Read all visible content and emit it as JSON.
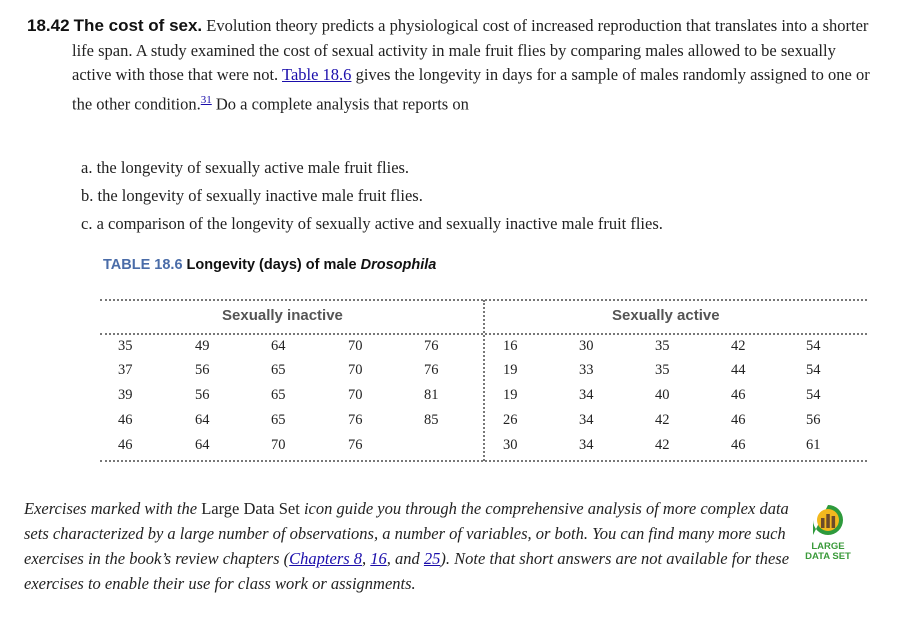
{
  "exercise": {
    "number": "18.42",
    "title": "The cost of sex.",
    "text_before_link": "Evolution theory predicts a physiological cost of increased reproduction that translates into a shorter life span. A study examined the cost of sexual activity in male fruit flies by comparing males allowed to be sexually active with those that were not.",
    "table_link": "Table 18.6",
    "text_after_link": "gives the longevity in days for a sample of males randomly assigned to one or the other condition.",
    "footnote": "31",
    "text_end": "Do a complete analysis that reports on",
    "items": [
      "a. the longevity of sexually active male fruit flies.",
      "b. the longevity of sexually inactive male fruit flies.",
      "c. a comparison of the longevity of sexually active and sexually inactive male fruit flies."
    ]
  },
  "table": {
    "label": "TABLE 18.6",
    "title": "Longevity (days) of male",
    "title_italic": "Drosophila",
    "groups": [
      {
        "header": "Sexually inactive",
        "rows": [
          [
            "35",
            "49",
            "64",
            "70",
            "76"
          ],
          [
            "37",
            "56",
            "65",
            "70",
            "76"
          ],
          [
            "39",
            "56",
            "65",
            "70",
            "81"
          ],
          [
            "46",
            "64",
            "65",
            "76",
            "85"
          ],
          [
            "46",
            "64",
            "70",
            "76",
            ""
          ]
        ]
      },
      {
        "header": "Sexually active",
        "rows": [
          [
            "16",
            "30",
            "35",
            "42",
            "54"
          ],
          [
            "19",
            "33",
            "35",
            "44",
            "54"
          ],
          [
            "19",
            "34",
            "40",
            "46",
            "54"
          ],
          [
            "26",
            "34",
            "42",
            "46",
            "56"
          ],
          [
            "30",
            "34",
            "42",
            "46",
            "61"
          ]
        ]
      }
    ]
  },
  "note": {
    "part1": "Exercises marked with the",
    "large_data_set": "Large Data Set",
    "part2": "icon guide you through the comprehensive analysis of more complex data sets characterized by a large number of observations, a number of variables, or both. You can find many more such exercises in the book’s review chapters (",
    "links": [
      "Chapters 8",
      "16",
      "25"
    ],
    "sep1": ", ",
    "sep2": ", and ",
    "part3": "). Note that short answers are not available for these exercises to enable their use for class work or assignments."
  },
  "logo": {
    "line1": "LARGE",
    "line2": "DATA SET",
    "colors": {
      "green": "#2e9a3c",
      "gold": "#f2b81e",
      "bars": "#6b4a2a"
    }
  }
}
